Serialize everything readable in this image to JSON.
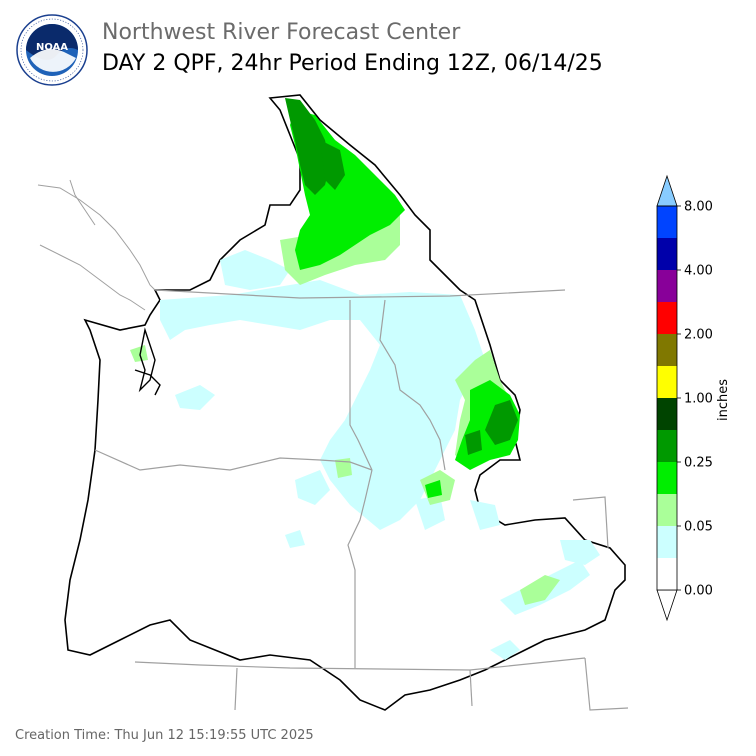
{
  "header": {
    "org": "Northwest River Forecast Center",
    "title": "DAY 2 QPF, 24hr Period Ending 12Z, 06/14/25"
  },
  "logo": {
    "text": "NOAA",
    "ring_text": "NATIONAL OCEANIC AND ATMOSPHERIC ADMINISTRATION · U.S. DEPARTMENT OF COMMERCE",
    "icon": "noaa-logo-icon"
  },
  "legend": {
    "title": "inches",
    "bins": [
      {
        "color": "#ffffff"
      },
      {
        "color": "#ccffff"
      },
      {
        "color": "#aaff99"
      },
      {
        "color": "#00ee00"
      },
      {
        "color": "#009900"
      },
      {
        "color": "#004400"
      },
      {
        "color": "#ffff00"
      },
      {
        "color": "#807800"
      },
      {
        "color": "#ff0000"
      },
      {
        "color": "#880099"
      },
      {
        "color": "#0000aa"
      },
      {
        "color": "#0044ff"
      },
      {
        "color": "#88ccff"
      }
    ],
    "tick_labels": [
      "0.00",
      "0.05",
      "0.25",
      "1.00",
      "2.00",
      "4.00",
      "8.00"
    ]
  },
  "footer": {
    "creation": "Creation Time: Thu Jun 12 15:19:55 UTC 2025"
  }
}
